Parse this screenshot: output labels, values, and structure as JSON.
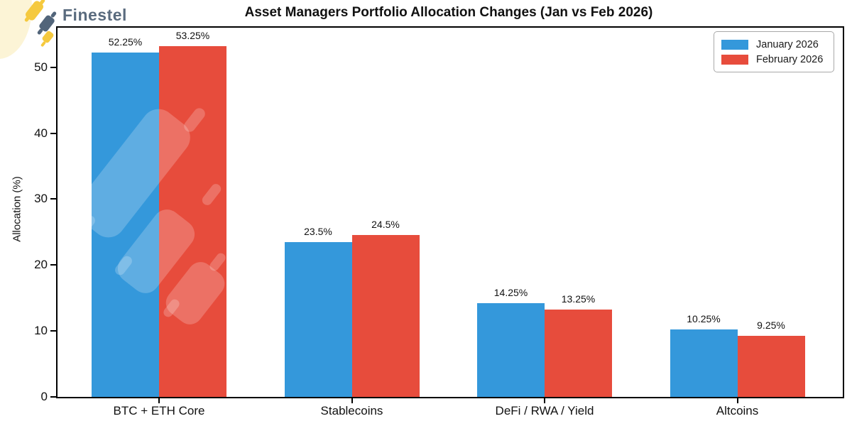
{
  "brand": {
    "name": "Finestel"
  },
  "chart_data": {
    "type": "bar",
    "title": "Asset Managers Portfolio Allocation Changes (Jan vs Feb 2026)",
    "ylabel": "Allocation (%)",
    "categories": [
      "BTC + ETH Core",
      "Stablecoins",
      "DeFi / RWA / Yield",
      "Altcoins"
    ],
    "series": [
      {
        "name": "January 2026",
        "color": "#3498db",
        "values": [
          52.25,
          23.5,
          14.25,
          10.25
        ]
      },
      {
        "name": "February 2026",
        "color": "#e74c3c",
        "values": [
          53.25,
          24.5,
          13.25,
          9.25
        ]
      }
    ],
    "value_label_suffix": "%",
    "value_labels": [
      "52.25%",
      "23.5%",
      "14.25%",
      "10.25%",
      "53.25%",
      "24.5%",
      "13.25%",
      "9.25%"
    ],
    "yticks": [
      0,
      10,
      20,
      30,
      40,
      50
    ],
    "ylim": [
      0,
      56
    ],
    "grid": false,
    "legend_position": "top-right",
    "colors": {
      "january": "#3498db",
      "february": "#e74c3c",
      "axis": "#000000",
      "brand_text": "#5a6b7e",
      "logo_yellow": "#f5c93e",
      "logo_slate": "#52657a",
      "deco_blob": "#fcf4d6"
    }
  }
}
